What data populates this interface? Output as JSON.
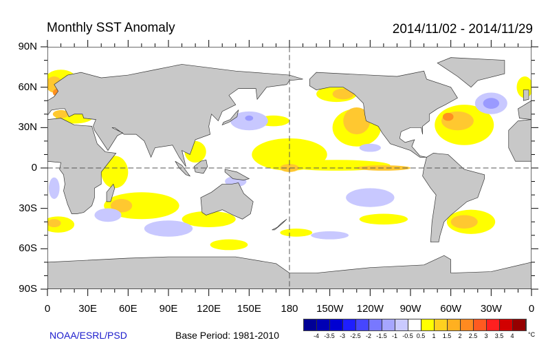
{
  "title": "Monthly SST Anomaly",
  "date_range": "2014/11/02 - 2014/11/29",
  "y_labels": [
    "90N",
    "60N",
    "30N",
    "0",
    "30S",
    "60S",
    "90S"
  ],
  "x_labels": [
    "0",
    "30E",
    "60E",
    "90E",
    "120E",
    "150E",
    "180",
    "150W",
    "120W",
    "90W",
    "60W",
    "30W",
    "0"
  ],
  "credit": "NOAA/ESRL/PSD",
  "base_period": "Base Period: 1981-2010",
  "colorbar": {
    "colors": [
      "#000096",
      "#0000b4",
      "#0000d2",
      "#1e1eff",
      "#4646ff",
      "#7878ff",
      "#a6a6ff",
      "#cacaff",
      "#ffffff",
      "#ffff00",
      "#ffd020",
      "#ffb020",
      "#ff8a20",
      "#ff5a20",
      "#ff2020",
      "#d20000",
      "#960000"
    ],
    "labels": [
      "-4",
      "-3.5",
      "-3",
      "-2.5",
      "-2",
      "-1.5",
      "-1",
      "-0.5",
      "0.5",
      "1",
      "1.5",
      "2",
      "2.5",
      "3",
      "3.5",
      "4"
    ],
    "unit": "°C"
  },
  "colors": {
    "land": "#c8c8c8",
    "warm1": "#ffff00",
    "warm2": "#ffc830",
    "warm3": "#ff9020",
    "cool1": "#c8c8ff",
    "cool2": "#9a9aff"
  }
}
